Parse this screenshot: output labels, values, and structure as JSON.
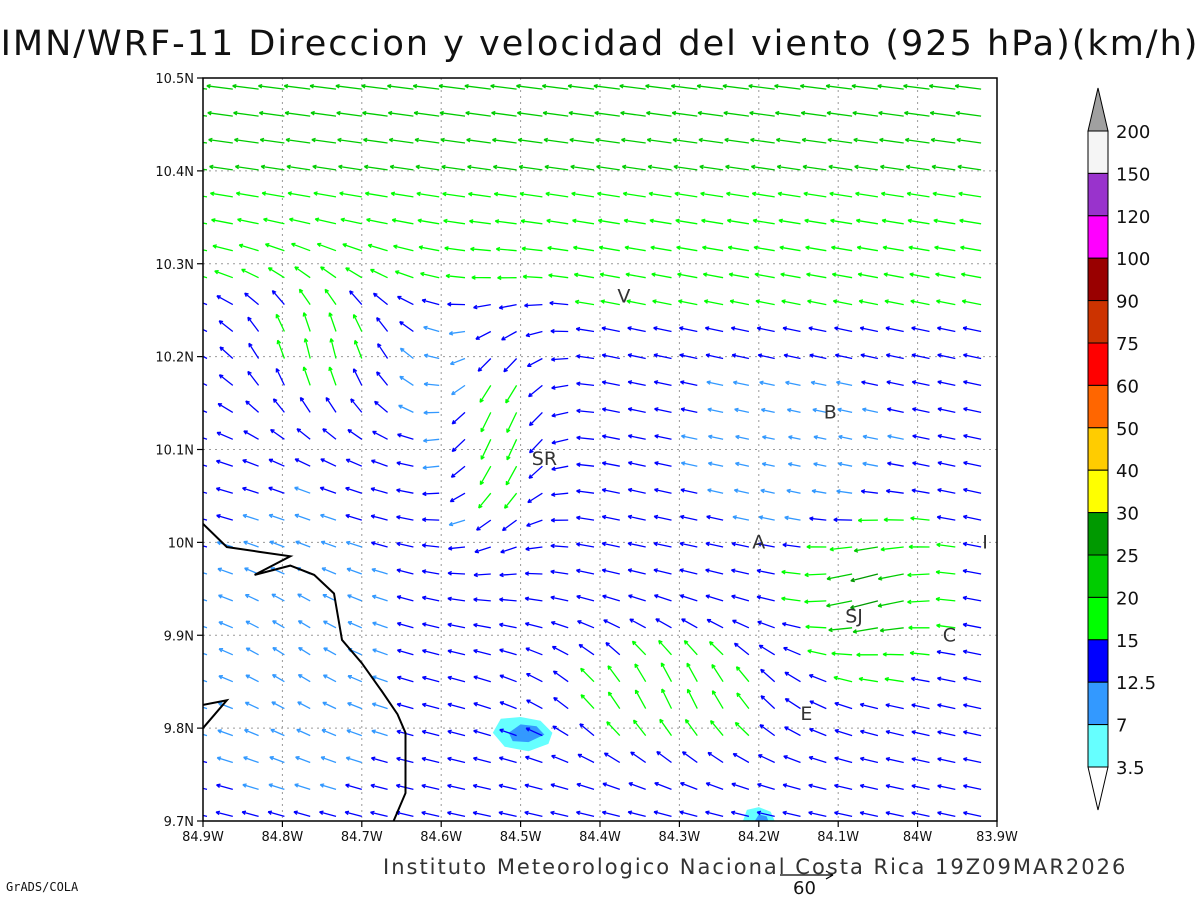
{
  "title": "IMN/WRF-11 Direccion y velocidad del viento (925 hPa)(km/h)",
  "footer": "Instituto Meteorologico Nacional Costa Rica 19Z09MAR2026",
  "credit": "GrADS/COLA",
  "reference_vector": {
    "label": "60",
    "speed": 60
  },
  "colors": {
    "frame": "#000000",
    "grid": "#999999",
    "coast": "#000000"
  },
  "map": {
    "lon_range": [
      -84.9,
      -83.9
    ],
    "lat_range": [
      9.7,
      10.5
    ],
    "lon_ticks": [
      {
        "value": -84.9,
        "label": "84.9W"
      },
      {
        "value": -84.8,
        "label": "84.8W"
      },
      {
        "value": -84.7,
        "label": "84.7W"
      },
      {
        "value": -84.6,
        "label": "84.6W"
      },
      {
        "value": -84.5,
        "label": "84.5W"
      },
      {
        "value": -84.4,
        "label": "84.4W"
      },
      {
        "value": -84.3,
        "label": "84.3W"
      },
      {
        "value": -84.2,
        "label": "84.2W"
      },
      {
        "value": -84.1,
        "label": "84.1W"
      },
      {
        "value": -84.0,
        "label": "84W"
      },
      {
        "value": -83.9,
        "label": "83.9W"
      }
    ],
    "lat_ticks": [
      {
        "value": 9.7,
        "label": "9.7N"
      },
      {
        "value": 9.8,
        "label": "9.8N"
      },
      {
        "value": 9.9,
        "label": "9.9N"
      },
      {
        "value": 10.0,
        "label": "10N"
      },
      {
        "value": 10.1,
        "label": "10.1N"
      },
      {
        "value": 10.2,
        "label": "10.2N"
      },
      {
        "value": 10.3,
        "label": "10.3N"
      },
      {
        "value": 10.4,
        "label": "10.4N"
      },
      {
        "value": 10.5,
        "label": "10.5N"
      }
    ],
    "places": [
      {
        "label": "V",
        "lon": -84.37,
        "lat": 10.265
      },
      {
        "label": "B",
        "lon": -84.11,
        "lat": 10.14
      },
      {
        "label": "SR",
        "lon": -84.47,
        "lat": 10.09
      },
      {
        "label": "A",
        "lon": -84.2,
        "lat": 10.0
      },
      {
        "label": "I",
        "lon": -83.915,
        "lat": 10.0
      },
      {
        "label": "SJ",
        "lon": -84.08,
        "lat": 9.92
      },
      {
        "label": "C",
        "lon": -83.96,
        "lat": 9.9
      },
      {
        "label": "E",
        "lon": -84.14,
        "lat": 9.815
      }
    ],
    "coastline": [
      [
        [
          -84.9,
          10.02
        ],
        [
          -84.87,
          9.995
        ],
        [
          -84.83,
          9.99
        ],
        [
          -84.79,
          9.985
        ],
        [
          -84.835,
          9.965
        ],
        [
          -84.79,
          9.975
        ],
        [
          -84.76,
          9.965
        ],
        [
          -84.735,
          9.945
        ],
        [
          -84.725,
          9.895
        ],
        [
          -84.7,
          9.87
        ],
        [
          -84.675,
          9.84
        ],
        [
          -84.655,
          9.815
        ],
        [
          -84.645,
          9.795
        ],
        [
          -84.645,
          9.755
        ],
        [
          -84.645,
          9.73
        ],
        [
          -84.66,
          9.7
        ]
      ],
      [
        [
          -84.9,
          9.8
        ],
        [
          -84.885,
          9.815
        ],
        [
          -84.87,
          9.83
        ],
        [
          -84.9,
          9.825
        ]
      ]
    ],
    "shaded_areas": [
      {
        "color": "#66ffff",
        "points": [
          [
            -84.535,
            9.795
          ],
          [
            -84.525,
            9.81
          ],
          [
            -84.5,
            9.812
          ],
          [
            -84.475,
            9.808
          ],
          [
            -84.46,
            9.795
          ],
          [
            -84.465,
            9.783
          ],
          [
            -84.49,
            9.775
          ],
          [
            -84.52,
            9.78
          ]
        ]
      },
      {
        "color": "#3399ff",
        "points": [
          [
            -84.515,
            9.795
          ],
          [
            -84.5,
            9.804
          ],
          [
            -84.48,
            9.802
          ],
          [
            -84.47,
            9.793
          ],
          [
            -84.49,
            9.785
          ],
          [
            -84.51,
            9.786
          ]
        ]
      },
      {
        "color": "#66ffff",
        "points": [
          [
            -84.22,
            9.7
          ],
          [
            -84.215,
            9.712
          ],
          [
            -84.2,
            9.715
          ],
          [
            -84.185,
            9.71
          ],
          [
            -84.18,
            9.7
          ]
        ]
      },
      {
        "color": "#3399ff",
        "points": [
          [
            -84.205,
            9.7
          ],
          [
            -84.2,
            9.707
          ],
          [
            -84.19,
            9.705
          ],
          [
            -84.188,
            9.7
          ]
        ]
      }
    ]
  },
  "colorbar": {
    "levels": [
      {
        "label": "",
        "color": "#a0a0a0"
      },
      {
        "label": "200",
        "color": "#f5f5f5"
      },
      {
        "label": "150",
        "color": "#9933cc"
      },
      {
        "label": "120",
        "color": "#ff00ff"
      },
      {
        "label": "100",
        "color": "#990000"
      },
      {
        "label": "90",
        "color": "#cc3300"
      },
      {
        "label": "75",
        "color": "#ff0000"
      },
      {
        "label": "60",
        "color": "#ff6600"
      },
      {
        "label": "50",
        "color": "#ffcc00"
      },
      {
        "label": "40",
        "color": "#ffff00"
      },
      {
        "label": "30",
        "color": "#009900"
      },
      {
        "label": "25",
        "color": "#00cc00"
      },
      {
        "label": "20",
        "color": "#00ff00"
      },
      {
        "label": "15",
        "color": "#0000ff"
      },
      {
        "label": "12.5",
        "color": "#3399ff"
      },
      {
        "label": "7",
        "color": "#66ffff"
      },
      {
        "label": "3.5",
        "color": "#ffffff"
      }
    ]
  }
}
